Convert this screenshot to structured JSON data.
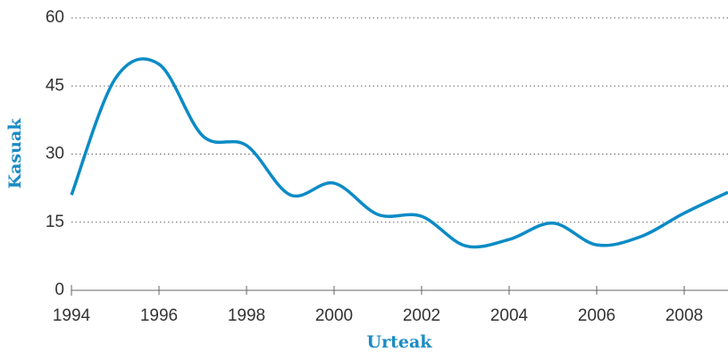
{
  "chart_data": {
    "type": "line",
    "x": [
      1994,
      1995,
      1996,
      1997,
      1998,
      1999,
      2000,
      2001,
      2002,
      2003,
      2004,
      2005,
      2006,
      2007,
      2008,
      2009
    ],
    "values": [
      21,
      46.6,
      49.8,
      34,
      31.9,
      21,
      23.6,
      16.7,
      16.3,
      9.8,
      11.2,
      14.8,
      10,
      11.8,
      17,
      21.6
    ],
    "color": "#0b8bc6",
    "xlabel": "Urteak",
    "ylabel": "Kasuak",
    "xlim": [
      1994,
      2009
    ],
    "ylim": [
      0,
      60
    ],
    "xticks": [
      1994,
      1996,
      1998,
      2000,
      2002,
      2004,
      2006,
      2008
    ],
    "yticks": [
      0,
      15,
      30,
      45,
      60
    ],
    "grid": true
  }
}
